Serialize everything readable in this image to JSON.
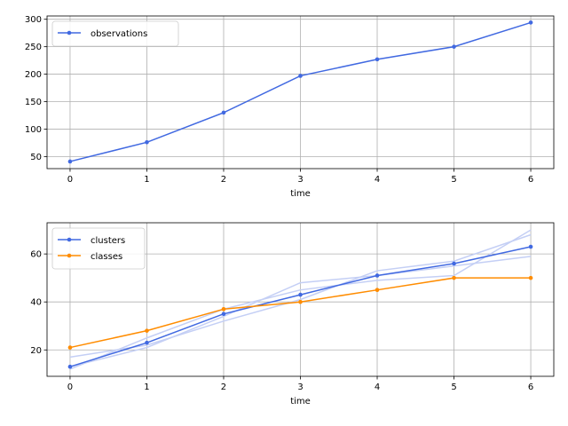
{
  "chart_data": [
    {
      "type": "line",
      "xlabel": "time",
      "ylabel": "",
      "x": [
        0,
        1,
        2,
        3,
        4,
        5,
        6
      ],
      "xticks": [
        0,
        1,
        2,
        3,
        4,
        5,
        6
      ],
      "yticks": [
        50,
        100,
        150,
        200,
        250,
        300
      ],
      "ylim": [
        28,
        306
      ],
      "xlim": [
        -0.3,
        6.3
      ],
      "grid": true,
      "legend": "top-left",
      "series": [
        {
          "name": "observations",
          "color": "#4169e1",
          "values": [
            41,
            76,
            130,
            197,
            227,
            250,
            294
          ]
        }
      ],
      "background_series": []
    },
    {
      "type": "line",
      "xlabel": "time",
      "ylabel": "",
      "x": [
        0,
        1,
        2,
        3,
        4,
        5,
        6
      ],
      "xticks": [
        0,
        1,
        2,
        3,
        4,
        5,
        6
      ],
      "yticks": [
        20,
        40,
        60
      ],
      "ylim": [
        9,
        73
      ],
      "xlim": [
        -0.3,
        6.3
      ],
      "grid": true,
      "legend": "top-left",
      "series": [
        {
          "name": "clusters",
          "color": "#4169e1",
          "values": [
            13,
            23,
            35,
            43,
            51,
            56,
            63
          ]
        },
        {
          "name": "classes",
          "color": "#ff8c00",
          "values": [
            21,
            28,
            37,
            40,
            45,
            50,
            50
          ]
        }
      ],
      "background_series": [
        {
          "color": "#c4cff5",
          "values": [
            13,
            21,
            34,
            48,
            51,
            55,
            59
          ]
        },
        {
          "color": "#c4cff5",
          "values": [
            17,
            22,
            32,
            41,
            53,
            57,
            68
          ]
        },
        {
          "color": "#c4cff5",
          "values": [
            12,
            25,
            37,
            45,
            49,
            51,
            70
          ]
        }
      ]
    }
  ]
}
